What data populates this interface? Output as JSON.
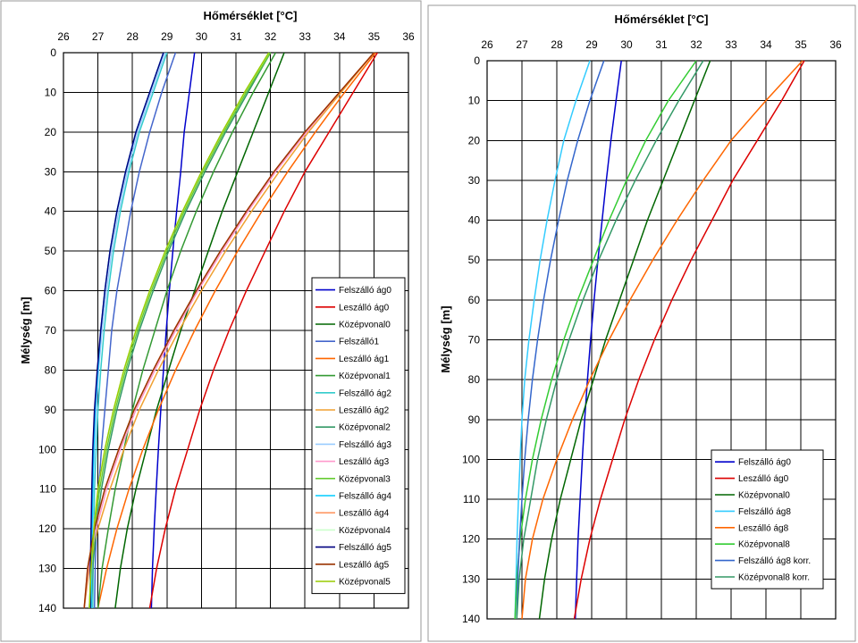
{
  "chart_data": [
    {
      "type": "line",
      "title": "",
      "xlabel": "Hőmérséklet [°C]",
      "ylabel": "Mélység [m]",
      "xlim": [
        26,
        36
      ],
      "ylim": [
        0,
        140
      ],
      "x_axis_position": "top",
      "y_axis_inverted": true,
      "grid": true,
      "legend_position": "right",
      "x_ticks": [
        "26",
        "27",
        "28",
        "29",
        "30",
        "31",
        "32",
        "33",
        "34",
        "35",
        "36"
      ],
      "y_ticks": [
        "0",
        "10",
        "20",
        "30",
        "40",
        "50",
        "60",
        "70",
        "80",
        "90",
        "100",
        "110",
        "120",
        "130",
        "140"
      ],
      "depth": [
        0,
        10,
        20,
        30,
        40,
        50,
        60,
        70,
        80,
        90,
        100,
        110,
        120,
        130,
        140
      ],
      "series": [
        {
          "name": "Felszálló ág0",
          "color": "#0000cc",
          "values": [
            29.8,
            29.65,
            29.5,
            29.4,
            29.28,
            29.17,
            29.07,
            28.98,
            28.9,
            28.82,
            28.75,
            28.69,
            28.63,
            28.58,
            28.55
          ]
        },
        {
          "name": "Leszálló ág0",
          "color": "#dd0000",
          "values": [
            35.1,
            34.4,
            33.7,
            33.0,
            32.4,
            31.85,
            31.3,
            30.8,
            30.35,
            29.95,
            29.6,
            29.25,
            28.95,
            28.7,
            28.5
          ]
        },
        {
          "name": "Középvonal0",
          "color": "#006600",
          "values": [
            32.4,
            31.95,
            31.5,
            31.05,
            30.6,
            30.2,
            29.8,
            29.4,
            29.05,
            28.7,
            28.4,
            28.1,
            27.85,
            27.65,
            27.5
          ]
        },
        {
          "name": "Felszálló1",
          "color": "#4466cc",
          "values": [
            29.25,
            28.85,
            28.5,
            28.2,
            27.95,
            27.75,
            27.55,
            27.4,
            27.3,
            27.2,
            27.1,
            27.02,
            26.96,
            26.92,
            26.9
          ]
        },
        {
          "name": "Leszálló ág1",
          "color": "#ff6600",
          "values": [
            35.05,
            34.15,
            33.3,
            32.5,
            31.75,
            31.05,
            30.4,
            29.8,
            29.25,
            28.75,
            28.3,
            27.9,
            27.55,
            27.25,
            27.0
          ]
        },
        {
          "name": "Középvonal1",
          "color": "#339933",
          "values": [
            32.15,
            31.5,
            30.9,
            30.35,
            29.85,
            29.4,
            29.0,
            28.65,
            28.3,
            28.0,
            27.75,
            27.5,
            27.3,
            27.12,
            27.0
          ]
        },
        {
          "name": "Felszálló ág2",
          "color": "#33cccc",
          "values": [
            29.0,
            28.6,
            28.2,
            27.9,
            27.65,
            27.45,
            27.3,
            27.18,
            27.08,
            27.0,
            26.95,
            26.9,
            26.88,
            26.86,
            26.85
          ]
        },
        {
          "name": "Leszálló ág2",
          "color": "#f0a030",
          "values": [
            35.0,
            34.05,
            33.1,
            32.25,
            31.45,
            30.7,
            30.0,
            29.35,
            28.75,
            28.2,
            27.75,
            27.35,
            27.0,
            26.75,
            26.6
          ]
        },
        {
          "name": "Középvonal2",
          "color": "#339966",
          "values": [
            32.0,
            31.35,
            30.7,
            30.1,
            29.55,
            29.05,
            28.6,
            28.2,
            27.85,
            27.55,
            27.3,
            27.1,
            26.95,
            26.85,
            26.8
          ]
        },
        {
          "name": "Felszálló ág3",
          "color": "#99ccff",
          "values": [
            28.95,
            28.55,
            28.15,
            27.85,
            27.6,
            27.4,
            27.25,
            27.12,
            27.02,
            26.95,
            26.9,
            26.86,
            26.84,
            26.82,
            26.8
          ]
        },
        {
          "name": "Leszálló ág3",
          "color": "#ff99cc",
          "values": [
            35.0,
            34.0,
            33.05,
            32.15,
            31.35,
            30.6,
            29.9,
            29.25,
            28.65,
            28.1,
            27.65,
            27.25,
            26.95,
            26.72,
            26.6
          ]
        },
        {
          "name": "Középvonal3",
          "color": "#66cc33",
          "values": [
            32.0,
            31.3,
            30.65,
            30.05,
            29.5,
            29.0,
            28.55,
            28.15,
            27.8,
            27.5,
            27.25,
            27.05,
            26.9,
            26.8,
            26.75
          ]
        },
        {
          "name": "Felszálló ág4",
          "color": "#00ccff",
          "values": [
            28.9,
            28.5,
            28.1,
            27.8,
            27.55,
            27.35,
            27.2,
            27.08,
            27.0,
            26.92,
            26.88,
            26.85,
            26.83,
            26.81,
            26.8
          ]
        },
        {
          "name": "Leszálló ág4",
          "color": "#ff9966",
          "values": [
            35.0,
            34.0,
            33.0,
            32.1,
            31.3,
            30.55,
            29.85,
            29.2,
            28.6,
            28.05,
            27.6,
            27.2,
            26.9,
            26.7,
            26.6
          ]
        },
        {
          "name": "Középvonal4",
          "color": "#ccffcc",
          "values": [
            31.95,
            31.25,
            30.6,
            30.0,
            29.45,
            28.95,
            28.5,
            28.1,
            27.75,
            27.45,
            27.2,
            27.0,
            26.88,
            26.8,
            26.75
          ]
        },
        {
          "name": "Felszálló ág5",
          "color": "#000080",
          "values": [
            28.9,
            28.5,
            28.1,
            27.8,
            27.55,
            27.35,
            27.2,
            27.08,
            26.98,
            26.9,
            26.85,
            26.82,
            26.8,
            26.78,
            26.78
          ]
        },
        {
          "name": "Leszálló ág5",
          "color": "#993300",
          "values": [
            35.0,
            34.0,
            33.0,
            32.1,
            31.3,
            30.55,
            29.85,
            29.2,
            28.6,
            28.05,
            27.6,
            27.2,
            26.9,
            26.7,
            26.6
          ]
        },
        {
          "name": "Középvonal5",
          "color": "#99cc00",
          "values": [
            31.95,
            31.25,
            30.6,
            30.0,
            29.45,
            28.95,
            28.5,
            28.1,
            27.75,
            27.45,
            27.2,
            27.0,
            26.88,
            26.8,
            26.75
          ]
        }
      ]
    },
    {
      "type": "line",
      "title": "",
      "xlabel": "Hőmérséklet [°C]",
      "ylabel": "Mélység [m]",
      "xlim": [
        26,
        36
      ],
      "ylim": [
        0,
        140
      ],
      "x_axis_position": "top",
      "y_axis_inverted": true,
      "grid": true,
      "legend_position": "bottom-right",
      "x_ticks": [
        "26",
        "27",
        "28",
        "29",
        "30",
        "31",
        "32",
        "33",
        "34",
        "35",
        "36"
      ],
      "y_ticks": [
        "0",
        "10",
        "20",
        "30",
        "40",
        "50",
        "60",
        "70",
        "80",
        "90",
        "100",
        "110",
        "120",
        "130",
        "140"
      ],
      "depth": [
        0,
        10,
        20,
        30,
        40,
        50,
        60,
        70,
        80,
        90,
        100,
        110,
        120,
        130,
        140
      ],
      "series": [
        {
          "name": "Felszálló ág0",
          "color": "#0000cc",
          "values": [
            29.85,
            29.7,
            29.55,
            29.42,
            29.3,
            29.18,
            29.07,
            28.97,
            28.88,
            28.8,
            28.73,
            28.67,
            28.61,
            28.57,
            28.53
          ]
        },
        {
          "name": "Leszálló ág0",
          "color": "#dd0000",
          "values": [
            35.1,
            34.45,
            33.75,
            33.05,
            32.45,
            31.85,
            31.3,
            30.8,
            30.35,
            29.95,
            29.6,
            29.25,
            28.95,
            28.7,
            28.5
          ]
        },
        {
          "name": "Középvonal0",
          "color": "#006600",
          "values": [
            32.4,
            31.95,
            31.5,
            31.05,
            30.6,
            30.2,
            29.8,
            29.4,
            29.05,
            28.7,
            28.4,
            28.1,
            27.85,
            27.65,
            27.5
          ]
        },
        {
          "name": "Felszálló ág8",
          "color": "#33ccff",
          "values": [
            28.95,
            28.55,
            28.2,
            27.95,
            27.72,
            27.52,
            27.35,
            27.2,
            27.08,
            27.0,
            26.95,
            26.9,
            26.86,
            26.83,
            26.8
          ]
        },
        {
          "name": "Leszálló ág8",
          "color": "#ff6600",
          "values": [
            35.05,
            34.0,
            33.0,
            32.2,
            31.45,
            30.75,
            30.1,
            29.5,
            28.95,
            28.45,
            28.0,
            27.6,
            27.3,
            27.1,
            27.0
          ]
        },
        {
          "name": "Középvonal8",
          "color": "#33cc33",
          "values": [
            32.0,
            31.2,
            30.55,
            30.0,
            29.5,
            29.05,
            28.6,
            28.2,
            27.85,
            27.55,
            27.3,
            27.1,
            26.95,
            26.85,
            26.8
          ]
        },
        {
          "name": "Felszálló ág8 korr.",
          "color": "#3366cc",
          "values": [
            29.35,
            28.95,
            28.6,
            28.3,
            28.05,
            27.82,
            27.62,
            27.45,
            27.3,
            27.18,
            27.08,
            27.0,
            26.93,
            26.88,
            26.85
          ]
        },
        {
          "name": "Középvonal8 korr.",
          "color": "#339966",
          "values": [
            32.2,
            31.5,
            30.85,
            30.25,
            29.7,
            29.2,
            28.75,
            28.35,
            28.0,
            27.7,
            27.45,
            27.25,
            27.05,
            26.92,
            26.85
          ]
        }
      ]
    }
  ]
}
